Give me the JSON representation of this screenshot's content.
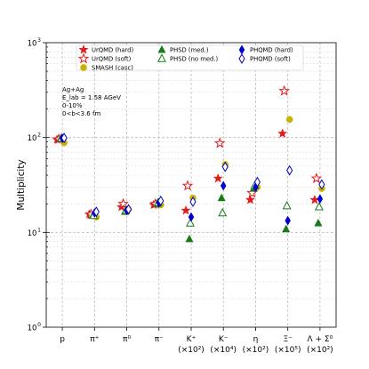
{
  "chart_data": {
    "type": "scatter",
    "title": "",
    "xlabel": "",
    "ylabel": "Multiplicity",
    "yscale": "log",
    "ylim": [
      1,
      1000
    ],
    "y_ticks": [
      {
        "value": 1,
        "label": "10",
        "exp": "0"
      },
      {
        "value": 10,
        "label": "10",
        "exp": "1"
      },
      {
        "value": 100,
        "label": "10",
        "exp": "2"
      },
      {
        "value": 1000,
        "label": "10",
        "exp": "3"
      }
    ],
    "grid": "dashed",
    "legend_location": "top",
    "annotation": [
      "Ag+Ag",
      "E_lab = 1.58 AGeV",
      "0-10%",
      "0<b<3.6 fm"
    ],
    "categories": [
      {
        "name": "p",
        "sub": ""
      },
      {
        "name": "π⁺",
        "sub": ""
      },
      {
        "name": "π⁰",
        "sub": ""
      },
      {
        "name": "π⁻",
        "sub": ""
      },
      {
        "name": "K⁺",
        "sub": "(×10²)"
      },
      {
        "name": "K⁻",
        "sub": "(×10⁴)"
      },
      {
        "name": "η",
        "sub": "(×10²)"
      },
      {
        "name": "Ξ⁻",
        "sub": "(×10⁵)"
      },
      {
        "name": "Λ + Σ⁰",
        "sub": "(×10²)"
      }
    ],
    "series": [
      {
        "name": "UrQMD (hard)",
        "marker": "star",
        "fill": "filled",
        "color": "#e41a1c",
        "values": [
          95,
          15.5,
          18.5,
          19.5,
          17,
          37,
          22,
          110,
          22
        ]
      },
      {
        "name": "UrQMD (soft)",
        "marker": "star",
        "fill": "open",
        "color": "#e41a1c",
        "values": [
          96,
          15.5,
          20,
          20,
          31,
          87,
          26,
          310,
          37
        ]
      },
      {
        "name": "SMASH (casc)",
        "marker": "circle",
        "fill": "filled",
        "color": "#c8b400",
        "values": [
          88,
          14.5,
          17.5,
          19.5,
          23,
          52,
          30,
          155,
          29
        ]
      },
      {
        "name": "PHSD (med.)",
        "marker": "triangle",
        "fill": "filled",
        "color": "#1a7a1a",
        "values": [
          97,
          15,
          16.5,
          20,
          8.5,
          23,
          29,
          10.8,
          12.5
        ]
      },
      {
        "name": "PHSD (no med.)",
        "marker": "triangle",
        "fill": "open",
        "color": "#1a7a1a",
        "values": [
          98,
          15,
          17,
          20.5,
          12.5,
          16,
          31,
          19,
          18.5
        ]
      },
      {
        "name": "PHQMD (hard)",
        "marker": "diamond",
        "fill": "filled",
        "color": "#0000cc",
        "values": [
          98,
          16,
          17,
          20.5,
          14.5,
          31,
          30,
          13.3,
          22.5
        ]
      },
      {
        "name": "PHQMD (soft)",
        "marker": "diamond",
        "fill": "open",
        "color": "#0000cc",
        "values": [
          99,
          16.5,
          17.5,
          21.5,
          21,
          49,
          34,
          45,
          32
        ]
      }
    ]
  }
}
